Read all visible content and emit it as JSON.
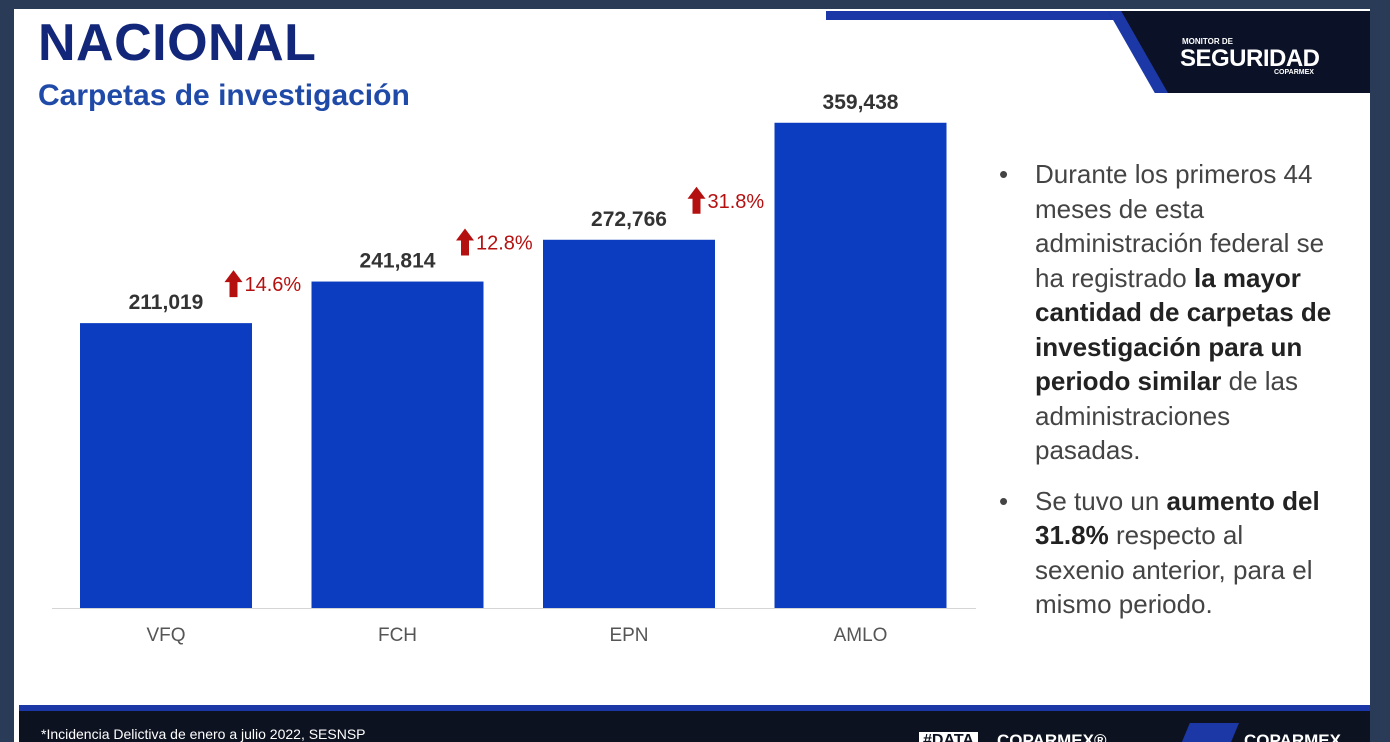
{
  "title": "NACIONAL",
  "subtitle": "Carpetas de investigación",
  "logo": {
    "small": "MONITOR DE",
    "main": "SEGURIDAD",
    "sub": "COPARMEX"
  },
  "bullets": [
    {
      "t1": "Durante los primeros 44 meses de esta administración federal se ha registrado ",
      "b1": "la mayor cantidad de carpetas de investigación para un periodo similar",
      "t2": " de las administraciones pasadas."
    },
    {
      "t1": "Se tuvo un ",
      "b1": "aumento del 31.8%",
      "t2": " respecto al sexenio anterior, para el mismo periodo."
    }
  ],
  "footer": {
    "note": "*Incidencia Delictiva  de  enero a julio 2022, SESNSP",
    "brand_data": "#DATA",
    "brand_rest": "COPARMEX®",
    "brand_logo": "COPARMEX"
  },
  "colors": {
    "bar": "#0c3cc0",
    "arrow": "#b51010",
    "value": "#333333",
    "axis_label": "#555555"
  },
  "chart_data": {
    "type": "bar",
    "categories": [
      "VFQ",
      "FCH",
      "EPN",
      "AMLO"
    ],
    "values": [
      211019,
      241814,
      272766,
      359438
    ],
    "value_labels": [
      "211,019",
      "241,814",
      "272,766",
      "359,438"
    ],
    "changes": [
      "",
      "14.6%",
      "12.8%",
      "31.8%"
    ],
    "ylim": [
      0,
      400000
    ],
    "grid": false,
    "legend": "none"
  }
}
